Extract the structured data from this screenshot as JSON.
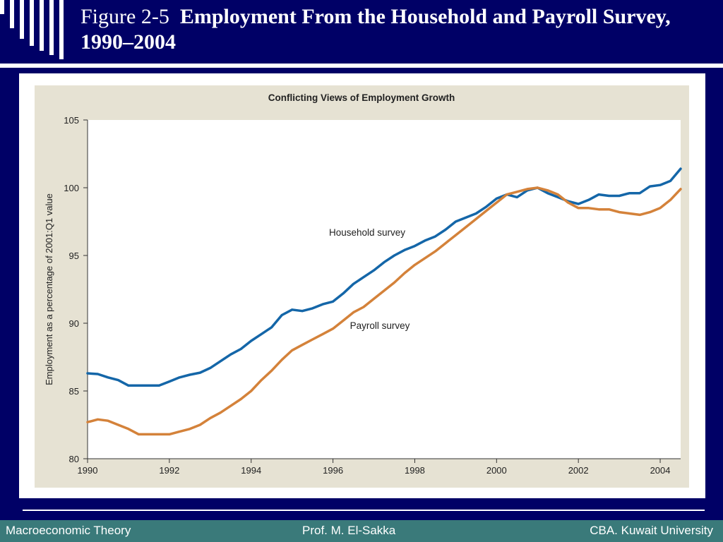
{
  "slide": {
    "figure_number": "Figure 2-5",
    "figure_title": "Employment From the Household and Payroll Survey, 1990–2004"
  },
  "footer": {
    "left": "Macroeconomic Theory",
    "center": "Prof. M. El-Sakka",
    "right": "CBA. Kuwait University"
  },
  "colors": {
    "background": "#000066",
    "panel": "#e6e2d3",
    "household": "#1466a8",
    "payroll": "#d4823a",
    "footer": "#3a7a7a"
  },
  "chart_data": {
    "type": "line",
    "title": "Conflicting Views of Employment Growth",
    "xlabel": "",
    "ylabel": "Employment as a percentage of 2001:Q1 value",
    "xlim": [
      1990,
      2004.5
    ],
    "ylim": [
      80,
      105
    ],
    "x_ticks": [
      1990,
      1992,
      1994,
      1996,
      1998,
      2000,
      2002,
      2004
    ],
    "y_ticks": [
      80,
      85,
      90,
      95,
      100,
      105
    ],
    "grid": false,
    "legend": "inline labels",
    "series": [
      {
        "name": "Household survey",
        "color": "#1466a8",
        "points": [
          [
            1990.0,
            86.3
          ],
          [
            1990.25,
            86.25
          ],
          [
            1990.5,
            86.0
          ],
          [
            1990.75,
            85.8
          ],
          [
            1991.0,
            85.4
          ],
          [
            1991.25,
            85.4
          ],
          [
            1991.5,
            85.4
          ],
          [
            1991.75,
            85.4
          ],
          [
            1992.0,
            85.7
          ],
          [
            1992.25,
            86.0
          ],
          [
            1992.5,
            86.2
          ],
          [
            1992.75,
            86.35
          ],
          [
            1993.0,
            86.7
          ],
          [
            1993.25,
            87.2
          ],
          [
            1993.5,
            87.7
          ],
          [
            1993.75,
            88.1
          ],
          [
            1994.0,
            88.7
          ],
          [
            1994.25,
            89.2
          ],
          [
            1994.5,
            89.7
          ],
          [
            1994.75,
            90.6
          ],
          [
            1995.0,
            91.0
          ],
          [
            1995.25,
            90.9
          ],
          [
            1995.5,
            91.1
          ],
          [
            1995.75,
            91.4
          ],
          [
            1996.0,
            91.6
          ],
          [
            1996.25,
            92.2
          ],
          [
            1996.5,
            92.9
          ],
          [
            1996.75,
            93.4
          ],
          [
            1997.0,
            93.9
          ],
          [
            1997.25,
            94.5
          ],
          [
            1997.5,
            95.0
          ],
          [
            1997.75,
            95.4
          ],
          [
            1998.0,
            95.7
          ],
          [
            1998.25,
            96.1
          ],
          [
            1998.5,
            96.4
          ],
          [
            1998.75,
            96.9
          ],
          [
            1999.0,
            97.5
          ],
          [
            1999.25,
            97.8
          ],
          [
            1999.5,
            98.1
          ],
          [
            1999.75,
            98.6
          ],
          [
            2000.0,
            99.2
          ],
          [
            2000.25,
            99.5
          ],
          [
            2000.5,
            99.3
          ],
          [
            2000.75,
            99.8
          ],
          [
            2001.0,
            100.0
          ],
          [
            2001.25,
            99.6
          ],
          [
            2001.5,
            99.3
          ],
          [
            2001.75,
            99.0
          ],
          [
            2002.0,
            98.8
          ],
          [
            2002.25,
            99.1
          ],
          [
            2002.5,
            99.5
          ],
          [
            2002.75,
            99.4
          ],
          [
            2003.0,
            99.4
          ],
          [
            2003.25,
            99.6
          ],
          [
            2003.5,
            99.6
          ],
          [
            2003.75,
            100.1
          ],
          [
            2004.0,
            100.2
          ],
          [
            2004.25,
            100.5
          ],
          [
            2004.5,
            101.4
          ]
        ]
      },
      {
        "name": "Payroll survey",
        "color": "#d4823a",
        "points": [
          [
            1990.0,
            82.7
          ],
          [
            1990.25,
            82.9
          ],
          [
            1990.5,
            82.8
          ],
          [
            1990.75,
            82.5
          ],
          [
            1991.0,
            82.2
          ],
          [
            1991.25,
            81.8
          ],
          [
            1991.5,
            81.8
          ],
          [
            1991.75,
            81.8
          ],
          [
            1992.0,
            81.8
          ],
          [
            1992.25,
            82.0
          ],
          [
            1992.5,
            82.2
          ],
          [
            1992.75,
            82.5
          ],
          [
            1993.0,
            83.0
          ],
          [
            1993.25,
            83.4
          ],
          [
            1993.5,
            83.9
          ],
          [
            1993.75,
            84.4
          ],
          [
            1994.0,
            85.0
          ],
          [
            1994.25,
            85.8
          ],
          [
            1994.5,
            86.5
          ],
          [
            1994.75,
            87.3
          ],
          [
            1995.0,
            88.0
          ],
          [
            1995.25,
            88.4
          ],
          [
            1995.5,
            88.8
          ],
          [
            1995.75,
            89.2
          ],
          [
            1996.0,
            89.6
          ],
          [
            1996.25,
            90.2
          ],
          [
            1996.5,
            90.8
          ],
          [
            1996.75,
            91.2
          ],
          [
            1997.0,
            91.8
          ],
          [
            1997.25,
            92.4
          ],
          [
            1997.5,
            93.0
          ],
          [
            1997.75,
            93.7
          ],
          [
            1998.0,
            94.3
          ],
          [
            1998.25,
            94.8
          ],
          [
            1998.5,
            95.3
          ],
          [
            1998.75,
            95.9
          ],
          [
            1999.0,
            96.5
          ],
          [
            1999.25,
            97.1
          ],
          [
            1999.5,
            97.7
          ],
          [
            1999.75,
            98.3
          ],
          [
            2000.0,
            98.9
          ],
          [
            2000.25,
            99.5
          ],
          [
            2000.5,
            99.7
          ],
          [
            2000.75,
            99.9
          ],
          [
            2001.0,
            100.0
          ],
          [
            2001.25,
            99.8
          ],
          [
            2001.5,
            99.5
          ],
          [
            2001.75,
            98.9
          ],
          [
            2002.0,
            98.5
          ],
          [
            2002.25,
            98.5
          ],
          [
            2002.5,
            98.4
          ],
          [
            2002.75,
            98.4
          ],
          [
            2003.0,
            98.2
          ],
          [
            2003.25,
            98.1
          ],
          [
            2003.5,
            98.0
          ],
          [
            2003.75,
            98.2
          ],
          [
            2004.0,
            98.5
          ],
          [
            2004.25,
            99.1
          ],
          [
            2004.5,
            99.9
          ]
        ]
      }
    ]
  }
}
